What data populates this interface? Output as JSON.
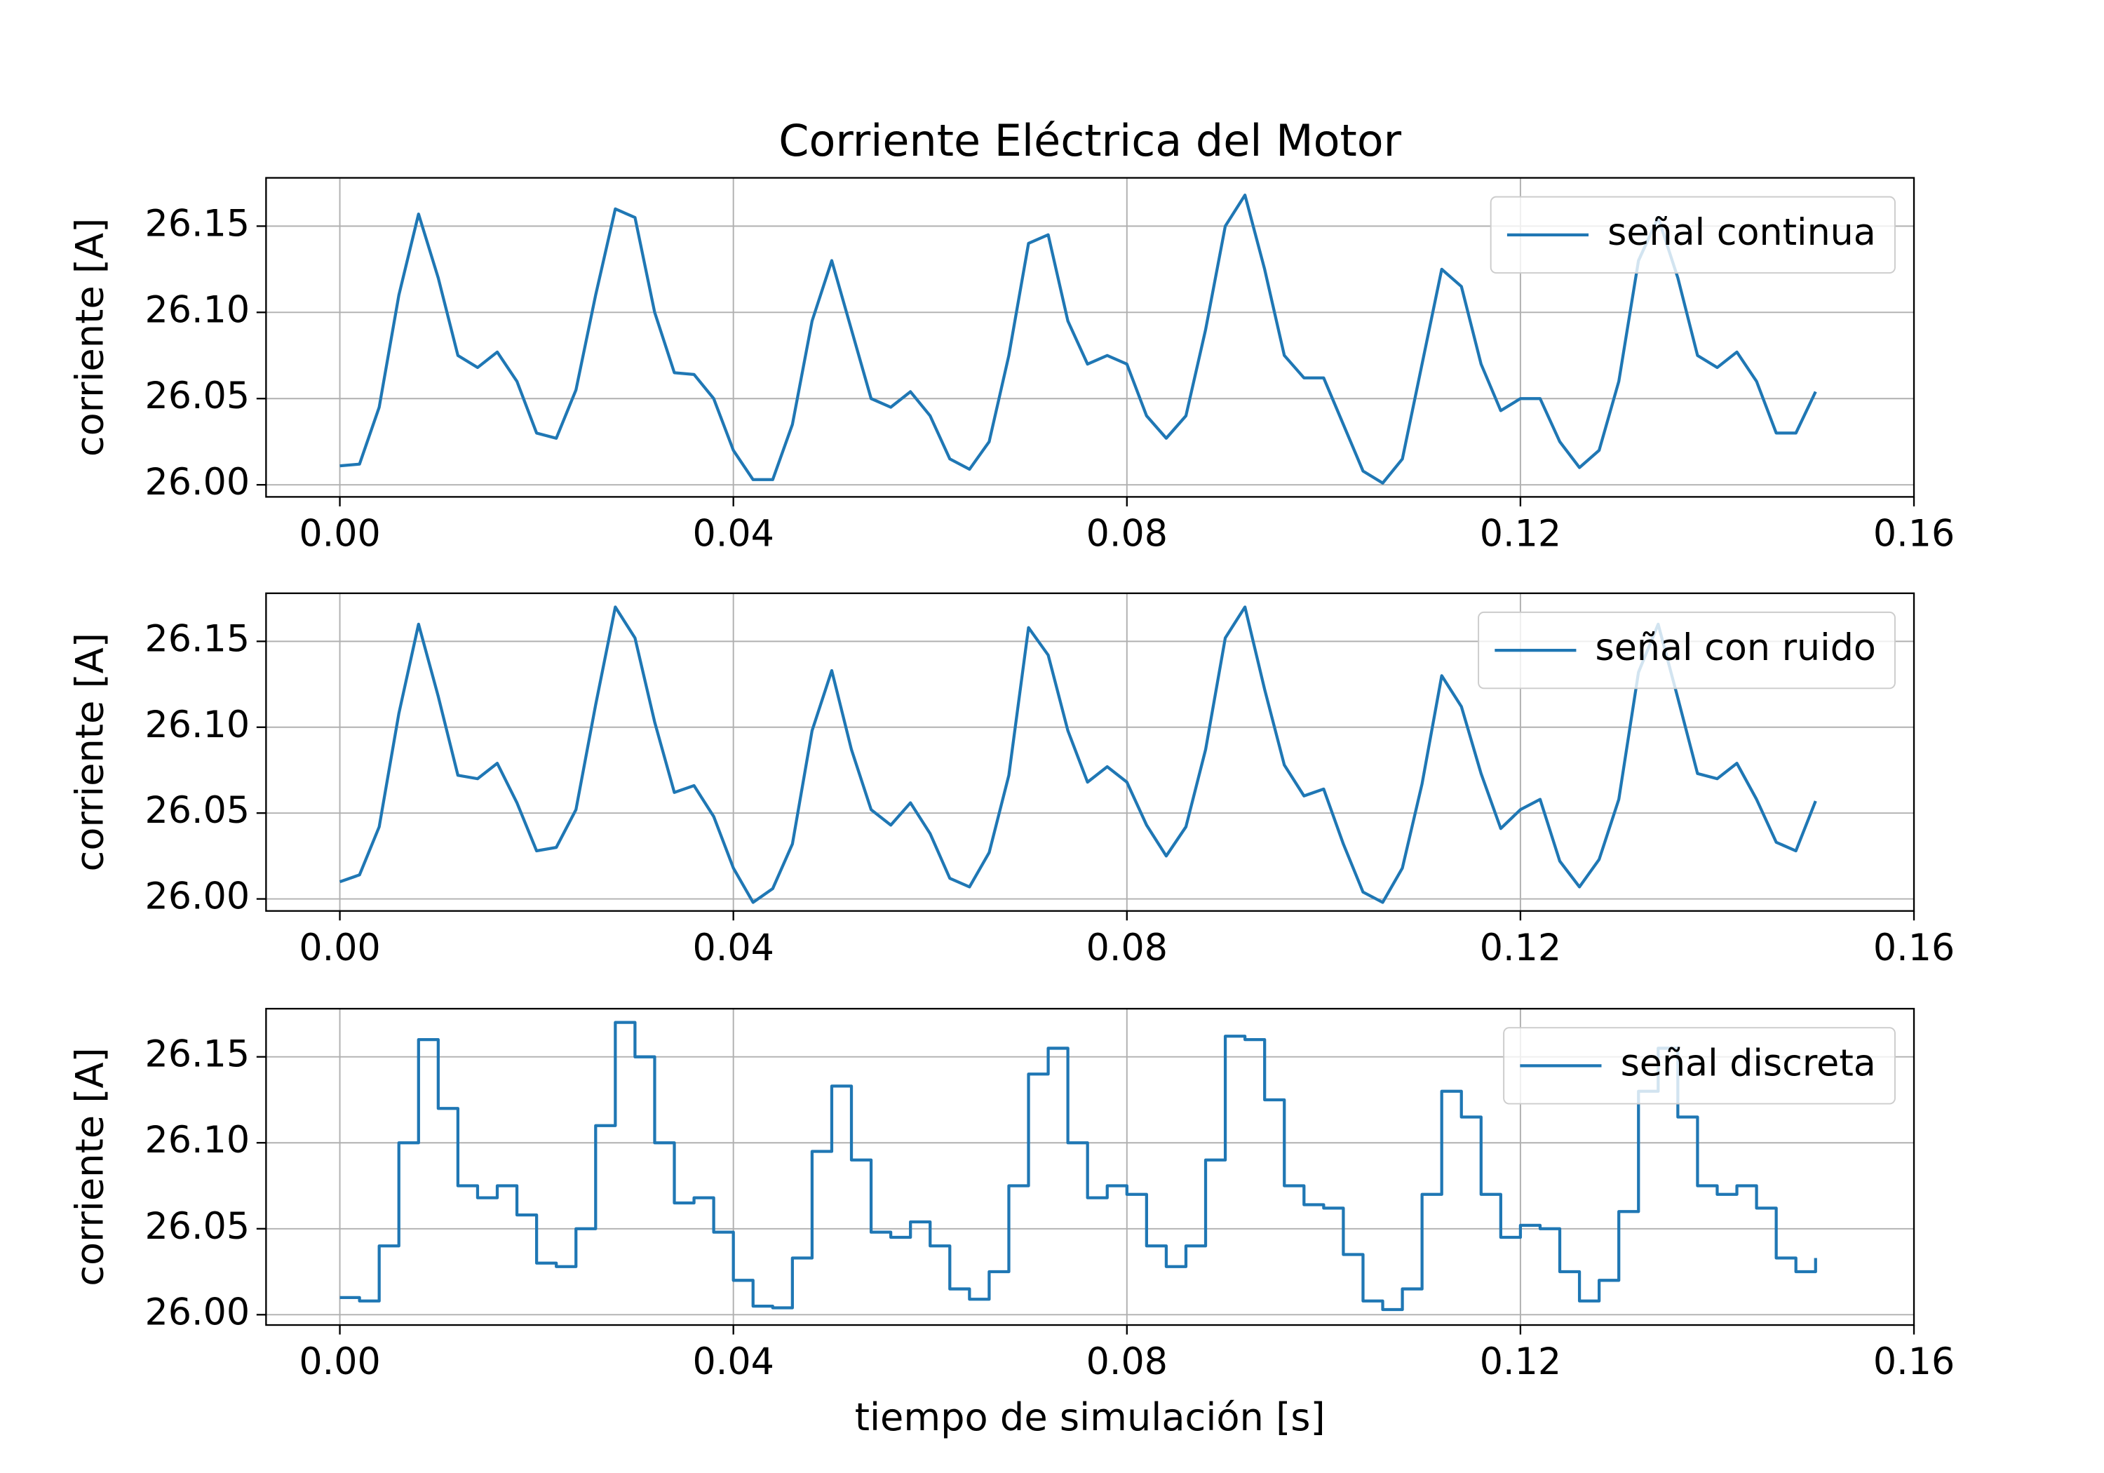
{
  "chart_data": [
    {
      "type": "line",
      "title": "Corriente Eléctrica del Motor",
      "ylabel": "corriente [A]",
      "x": [
        0,
        0.002,
        0.004,
        0.006,
        0.008,
        0.01,
        0.012,
        0.014,
        0.016,
        0.018,
        0.02,
        0.022,
        0.024,
        0.026,
        0.028,
        0.03,
        0.032,
        0.034,
        0.036,
        0.038,
        0.04,
        0.042,
        0.044,
        0.046,
        0.048,
        0.05,
        0.052,
        0.054,
        0.056,
        0.058,
        0.06,
        0.062,
        0.064,
        0.066,
        0.068,
        0.07,
        0.072,
        0.074,
        0.076,
        0.078,
        0.08,
        0.082,
        0.084,
        0.086,
        0.088,
        0.09,
        0.092,
        0.094,
        0.096,
        0.098,
        0.1,
        0.102,
        0.104,
        0.106,
        0.108,
        0.11,
        0.112,
        0.114,
        0.116,
        0.118,
        0.12,
        0.122,
        0.124,
        0.126,
        0.128,
        0.13,
        0.132,
        0.134,
        0.136,
        0.138,
        0.14,
        0.142,
        0.144,
        0.146,
        0.148,
        0.15
      ],
      "series": [
        {
          "name": "señal continua",
          "color": "#1f77b4",
          "values": [
            26.011,
            26.012,
            26.045,
            26.11,
            26.157,
            26.12,
            26.075,
            26.068,
            26.077,
            26.06,
            26.03,
            26.027,
            26.055,
            26.11,
            26.16,
            26.155,
            26.1,
            26.065,
            26.064,
            26.05,
            26.02,
            26.003,
            26.003,
            26.035,
            26.095,
            26.13,
            26.09,
            26.05,
            26.045,
            26.054,
            26.04,
            26.015,
            26.009,
            26.025,
            26.075,
            26.14,
            26.145,
            26.095,
            26.07,
            26.075,
            26.07,
            26.04,
            26.027,
            26.04,
            26.09,
            26.15,
            26.168,
            26.125,
            26.075,
            26.062,
            26.062,
            26.035,
            26.008,
            26.001,
            26.015,
            26.07,
            26.125,
            26.115,
            26.07,
            26.043,
            26.05,
            26.05,
            26.025,
            26.01,
            26.02,
            26.06,
            26.13,
            26.155,
            26.12,
            26.075,
            26.068,
            26.077,
            26.06,
            26.03,
            26.03,
            26.054
          ]
        }
      ],
      "xlim": [
        -0.0075,
        0.16
      ],
      "xticks": [
        {
          "value": 0,
          "label": "0.00"
        },
        0.04,
        0.08,
        0.12,
        0.16
      ],
      "ylim": [
        25.993,
        26.178
      ],
      "yticks": [
        {
          "value": 26,
          "label": "26.00"
        },
        26.05,
        {
          "value": 26.1,
          "label": "26.10"
        },
        26.15
      ],
      "grid": true,
      "legend": "upper right"
    },
    {
      "type": "line",
      "ylabel": "corriente [A]",
      "x": [
        0,
        0.002,
        0.004,
        0.006,
        0.008,
        0.01,
        0.012,
        0.014,
        0.016,
        0.018,
        0.02,
        0.022,
        0.024,
        0.026,
        0.028,
        0.03,
        0.032,
        0.034,
        0.036,
        0.038,
        0.04,
        0.042,
        0.044,
        0.046,
        0.048,
        0.05,
        0.052,
        0.054,
        0.056,
        0.058,
        0.06,
        0.062,
        0.064,
        0.066,
        0.068,
        0.07,
        0.072,
        0.074,
        0.076,
        0.078,
        0.08,
        0.082,
        0.084,
        0.086,
        0.088,
        0.09,
        0.092,
        0.094,
        0.096,
        0.098,
        0.1,
        0.102,
        0.104,
        0.106,
        0.108,
        0.11,
        0.112,
        0.114,
        0.116,
        0.118,
        0.12,
        0.122,
        0.124,
        0.126,
        0.128,
        0.13,
        0.132,
        0.134,
        0.136,
        0.138,
        0.14,
        0.142,
        0.144,
        0.146,
        0.148,
        0.15
      ],
      "series": [
        {
          "name": "señal con ruido",
          "color": "#1f77b4",
          "values": [
            26.01,
            26.014,
            26.042,
            26.108,
            26.16,
            26.118,
            26.072,
            26.07,
            26.079,
            26.056,
            26.028,
            26.03,
            26.052,
            26.113,
            26.17,
            26.152,
            26.103,
            26.062,
            26.066,
            26.048,
            26.018,
            25.998,
            26.006,
            26.032,
            26.098,
            26.133,
            26.087,
            26.052,
            26.043,
            26.056,
            26.038,
            26.012,
            26.007,
            26.027,
            26.072,
            26.158,
            26.142,
            26.098,
            26.068,
            26.077,
            26.068,
            26.043,
            26.025,
            26.042,
            26.087,
            26.152,
            26.17,
            26.122,
            26.078,
            26.06,
            26.064,
            26.032,
            26.004,
            25.998,
            26.018,
            26.067,
            26.13,
            26.112,
            26.073,
            26.041,
            26.052,
            26.058,
            26.022,
            26.007,
            26.023,
            26.058,
            26.132,
            26.16,
            26.117,
            26.073,
            26.07,
            26.079,
            26.058,
            26.033,
            26.028,
            26.057
          ]
        }
      ],
      "xlim": [
        -0.0075,
        0.16
      ],
      "xticks": [
        {
          "value": 0,
          "label": "0.00"
        },
        0.04,
        0.08,
        0.12,
        0.16
      ],
      "ylim": [
        25.993,
        26.178
      ],
      "yticks": [
        {
          "value": 26,
          "label": "26.00"
        },
        26.05,
        {
          "value": 26.1,
          "label": "26.10"
        },
        26.15
      ],
      "grid": true,
      "legend": "upper right"
    },
    {
      "type": "step",
      "xlabel": "tiempo de simulación [s]",
      "ylabel": "corriente [A]",
      "x": [
        0,
        0.002,
        0.004,
        0.006,
        0.008,
        0.01,
        0.012,
        0.014,
        0.016,
        0.018,
        0.02,
        0.022,
        0.024,
        0.026,
        0.028,
        0.03,
        0.032,
        0.034,
        0.036,
        0.038,
        0.04,
        0.042,
        0.044,
        0.046,
        0.048,
        0.05,
        0.052,
        0.054,
        0.056,
        0.058,
        0.06,
        0.062,
        0.064,
        0.066,
        0.068,
        0.07,
        0.072,
        0.074,
        0.076,
        0.078,
        0.08,
        0.082,
        0.084,
        0.086,
        0.088,
        0.09,
        0.092,
        0.094,
        0.096,
        0.098,
        0.1,
        0.102,
        0.104,
        0.106,
        0.108,
        0.11,
        0.112,
        0.114,
        0.116,
        0.118,
        0.12,
        0.122,
        0.124,
        0.126,
        0.128,
        0.13,
        0.132,
        0.134,
        0.136,
        0.138,
        0.14,
        0.142,
        0.144,
        0.146,
        0.148,
        0.15
      ],
      "series": [
        {
          "name": "señal discreta",
          "color": "#1f77b4",
          "values": [
            26.01,
            26.008,
            26.04,
            26.1,
            26.16,
            26.12,
            26.075,
            26.068,
            26.075,
            26.058,
            26.03,
            26.028,
            26.05,
            26.11,
            26.17,
            26.15,
            26.1,
            26.065,
            26.068,
            26.048,
            26.02,
            26.005,
            26.004,
            26.033,
            26.095,
            26.133,
            26.09,
            26.048,
            26.045,
            26.054,
            26.04,
            26.015,
            26.009,
            26.025,
            26.075,
            26.14,
            26.155,
            26.1,
            26.068,
            26.075,
            26.07,
            26.04,
            26.028,
            26.04,
            26.09,
            26.162,
            26.16,
            26.125,
            26.075,
            26.064,
            26.062,
            26.035,
            26.008,
            26.003,
            26.015,
            26.07,
            26.13,
            26.115,
            26.07,
            26.045,
            26.052,
            26.05,
            26.025,
            26.008,
            26.02,
            26.06,
            26.13,
            26.155,
            26.115,
            26.075,
            26.07,
            26.075,
            26.062,
            26.033,
            26.025,
            26.033
          ]
        }
      ],
      "xlim": [
        -0.0075,
        0.16
      ],
      "xticks": [
        {
          "value": 0,
          "label": "0.00"
        },
        0.04,
        0.08,
        0.12,
        0.16
      ],
      "ylim": [
        25.994,
        26.178
      ],
      "yticks": [
        {
          "value": 26,
          "label": "26.00"
        },
        26.05,
        {
          "value": 26.1,
          "label": "26.10"
        },
        26.15
      ],
      "grid": true,
      "legend": "upper right"
    }
  ]
}
